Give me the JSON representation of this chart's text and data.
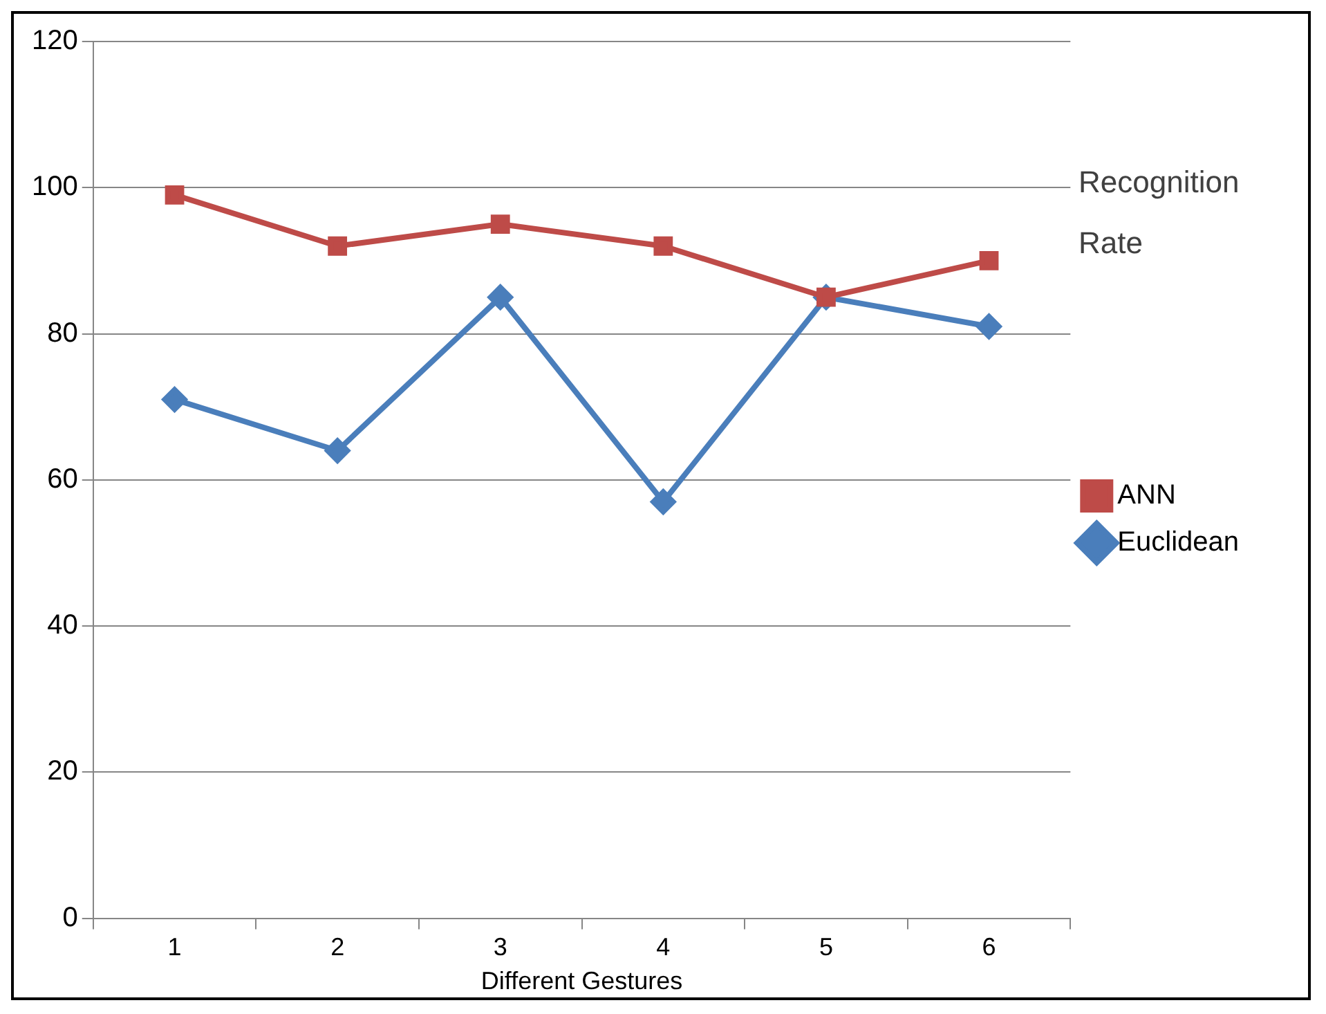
{
  "chart_data": {
    "type": "line",
    "title": "Recognition Rate",
    "xlabel": "Different Gestures",
    "categories": [
      "1",
      "2",
      "3",
      "4",
      "5",
      "6"
    ],
    "series": [
      {
        "name": "Euclidean",
        "color": "#4a7ebb",
        "values": [
          71,
          64,
          85,
          57,
          85,
          81
        ],
        "marker": "diamond"
      },
      {
        "name": "ANN",
        "color": "#be4b48",
        "values": [
          99,
          92,
          95,
          92,
          85,
          90
        ],
        "marker": "square"
      }
    ],
    "ylim": [
      0,
      120
    ],
    "yticks": [
      0,
      20,
      40,
      60,
      80,
      100,
      120
    ],
    "grid": "y",
    "legend": "right",
    "line_style": "solid"
  }
}
